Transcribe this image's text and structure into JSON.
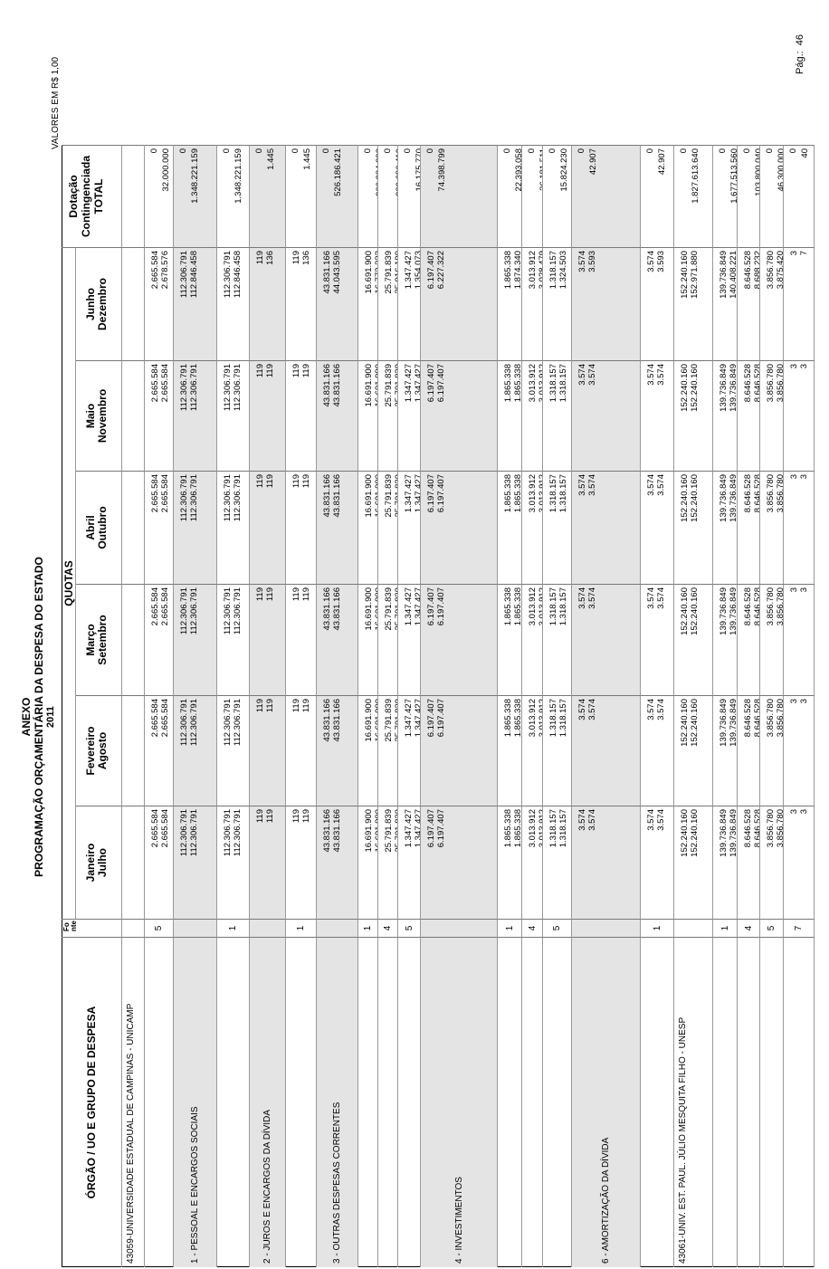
{
  "header": {
    "title": "ANEXO",
    "subtitle": "PROGRAMAÇÃO ORÇAMENTÁRIA DA DESPESA DO ESTADO",
    "year": "2011",
    "page_label": "Pág.:",
    "page": "46",
    "units": "VALORES EM R$ 1,00"
  },
  "table": {
    "columns": {
      "org": "ÓRGÃO / UO  E GRUPO DE DESPESA",
      "fonte": "Fonte",
      "quotas": "QUOTAS",
      "months": [
        [
          "Janeiro",
          "Julho"
        ],
        [
          "Fevereiro",
          "Agosto"
        ],
        [
          "Março",
          "Setembro"
        ],
        [
          "Abril",
          "Outubro"
        ],
        [
          "Maio",
          "Novembro"
        ],
        [
          "Junho",
          "Dezembro"
        ]
      ],
      "dotacao": "Dotação",
      "contingenciada": "Contingenciada",
      "total": "TOTAL"
    },
    "rows": [
      {
        "label": "43059-UNIVERSIDADE ESTADUAL DE CAMPINAS - UNICAMP"
      },
      {
        "fonte": "5",
        "quotas": [
          [
            "2.665.584",
            "2.665.584"
          ],
          [
            "2.665.584",
            "2.665.584"
          ],
          [
            "2.665.584",
            "2.665.584"
          ],
          [
            "2.665.584",
            "2.665.584"
          ],
          [
            "2.665.584",
            "2.665.584"
          ],
          [
            "2.665.584",
            "2.678.576"
          ]
        ],
        "dotacao": "0",
        "total": "32.000.000"
      },
      {
        "label": "1 - PESSOAL E ENCARGOS SOCIAIS",
        "shaded": true,
        "quotas": [
          [
            "112.306.791",
            "112.306.791"
          ],
          [
            "112.306.791",
            "112.306.791"
          ],
          [
            "112.306.791",
            "112.306.791"
          ],
          [
            "112.306.791",
            "112.306.791"
          ],
          [
            "112.306.791",
            "112.306.791"
          ],
          [
            "112.306.791",
            "112.846.458"
          ]
        ],
        "dotacao": "0",
        "total": "1.348.221.159"
      },
      {
        "fonte": "1",
        "quotas": [
          [
            "112.306.791",
            "112.306.791"
          ],
          [
            "112.306.791",
            "112.306.791"
          ],
          [
            "112.306.791",
            "112.306.791"
          ],
          [
            "112.306.791",
            "112.306.791"
          ],
          [
            "112.306.791",
            "112.306.791"
          ],
          [
            "112.306.791",
            "112.846.458"
          ]
        ],
        "dotacao": "0",
        "total": "1.348.221.159"
      },
      {
        "label": "2 - JUROS E ENCARGOS DA DÍVIDA",
        "shaded": true,
        "quotas": [
          [
            "119",
            "119"
          ],
          [
            "119",
            "119"
          ],
          [
            "119",
            "119"
          ],
          [
            "119",
            "119"
          ],
          [
            "119",
            "119"
          ],
          [
            "119",
            "136"
          ]
        ],
        "dotacao": "0",
        "total": "1.445"
      },
      {
        "fonte": "1",
        "quotas": [
          [
            "119",
            "119"
          ],
          [
            "119",
            "119"
          ],
          [
            "119",
            "119"
          ],
          [
            "119",
            "119"
          ],
          [
            "119",
            "119"
          ],
          [
            "119",
            "136"
          ]
        ],
        "dotacao": "0",
        "total": "1.445"
      },
      {
        "label": "3 - OUTRAS DESPESAS CORRENTES",
        "shaded": true,
        "quotas": [
          [
            "43.831.166",
            "43.831.166"
          ],
          [
            "43.831.166",
            "43.831.166"
          ],
          [
            "43.831.166",
            "43.831.166"
          ],
          [
            "43.831.166",
            "43.831.166"
          ],
          [
            "43.831.166",
            "43.831.166"
          ],
          [
            "43.831.166",
            "44.043.595"
          ]
        ],
        "dotacao": "0",
        "total": "526.186.421"
      },
      {
        "fonte": "1",
        "quotas": [
          [
            "16.691.900",
            "16.691.900"
          ],
          [
            "16.691.900",
            "16.691.900"
          ],
          [
            "16.691.900",
            "16.691.900"
          ],
          [
            "16.691.900",
            "16.691.900"
          ],
          [
            "16.691.900",
            "16.691.900"
          ],
          [
            "16.691.900",
            "16.773.332"
          ]
        ],
        "dotacao": "0",
        "total": "200.384.232"
      },
      {
        "fonte": "4",
        "quotas": [
          [
            "25.791.839",
            "25.791.839"
          ],
          [
            "25.791.839",
            "25.791.839"
          ],
          [
            "25.791.839",
            "25.791.839"
          ],
          [
            "25.791.839",
            "25.791.839"
          ],
          [
            "25.791.839",
            "25.791.839"
          ],
          [
            "25.791.839",
            "25.916.190"
          ]
        ],
        "dotacao": "0",
        "total": "309.626.419"
      },
      {
        "fonte": "5",
        "quotas": [
          [
            "1.347.427",
            "1.347.427"
          ],
          [
            "1.347.427",
            "1.347.427"
          ],
          [
            "1.347.427",
            "1.347.427"
          ],
          [
            "1.347.427",
            "1.347.427"
          ],
          [
            "1.347.427",
            "1.347.427"
          ],
          [
            "1.347.427",
            "1.354.073"
          ]
        ],
        "dotacao": "0",
        "total": "16.175.770"
      },
      {
        "label": "4 - INVESTIMENTOS",
        "shaded": true,
        "quotas": [
          [
            "6.197.407",
            "6.197.407"
          ],
          [
            "6.197.407",
            "6.197.407"
          ],
          [
            "6.197.407",
            "6.197.407"
          ],
          [
            "6.197.407",
            "6.197.407"
          ],
          [
            "6.197.407",
            "6.197.407"
          ],
          [
            "6.197.407",
            "6.227.322"
          ]
        ],
        "dotacao": "0",
        "total": "74.398.799"
      },
      {
        "fonte": "1",
        "quotas": [
          [
            "1.865.338",
            "1.865.338"
          ],
          [
            "1.865.338",
            "1.865.338"
          ],
          [
            "1.865.338",
            "1.865.338"
          ],
          [
            "1.865.338",
            "1.865.338"
          ],
          [
            "1.865.338",
            "1.865.338"
          ],
          [
            "1.865.338",
            "1.874.340"
          ]
        ],
        "dotacao": "0",
        "total": "22.393.058"
      },
      {
        "fonte": "4",
        "quotas": [
          [
            "3.013.912",
            "3.013.912"
          ],
          [
            "3.013.912",
            "3.013.912"
          ],
          [
            "3.013.912",
            "3.013.912"
          ],
          [
            "3.013.912",
            "3.013.912"
          ],
          [
            "3.013.912",
            "3.013.912"
          ],
          [
            "3.013.912",
            "3.028.479"
          ]
        ],
        "dotacao": "0",
        "total": "36.181.511"
      },
      {
        "fonte": "5",
        "quotas": [
          [
            "1.318.157",
            "1.318.157"
          ],
          [
            "1.318.157",
            "1.318.157"
          ],
          [
            "1.318.157",
            "1.318.157"
          ],
          [
            "1.318.157",
            "1.318.157"
          ],
          [
            "1.318.157",
            "1.318.157"
          ],
          [
            "1.318.157",
            "1.324.503"
          ]
        ],
        "dotacao": "0",
        "total": "15.824.230"
      },
      {
        "label": "6 - AMORTIZAÇÃO DA DÍVIDA",
        "shaded": true,
        "quotas": [
          [
            "3.574",
            "3.574"
          ],
          [
            "3.574",
            "3.574"
          ],
          [
            "3.574",
            "3.574"
          ],
          [
            "3.574",
            "3.574"
          ],
          [
            "3.574",
            "3.574"
          ],
          [
            "3.574",
            "3.593"
          ]
        ],
        "dotacao": "0",
        "total": "42.907"
      },
      {
        "fonte": "1",
        "quotas": [
          [
            "3.574",
            "3.574"
          ],
          [
            "3.574",
            "3.574"
          ],
          [
            "3.574",
            "3.574"
          ],
          [
            "3.574",
            "3.574"
          ],
          [
            "3.574",
            "3.574"
          ],
          [
            "3.574",
            "3.593"
          ]
        ],
        "dotacao": "0",
        "total": "42.907"
      },
      {
        "label": "43061-UNIV. EST. PAUL. JÚLIO MESQUITA FILHO - UNESP",
        "quotas": [
          [
            "152.240.160",
            "152.240.160"
          ],
          [
            "152.240.160",
            "152.240.160"
          ],
          [
            "152.240.160",
            "152.240.160"
          ],
          [
            "152.240.160",
            "152.240.160"
          ],
          [
            "152.240.160",
            "152.240.160"
          ],
          [
            "152.240.160",
            "152.971.880"
          ]
        ],
        "dotacao": "0",
        "total": "1.827.613.640"
      },
      {
        "fonte": "1",
        "quotas": [
          [
            "139.736.849",
            "139.736.849"
          ],
          [
            "139.736.849",
            "139.736.849"
          ],
          [
            "139.736.849",
            "139.736.849"
          ],
          [
            "139.736.849",
            "139.736.849"
          ],
          [
            "139.736.849",
            "139.736.849"
          ],
          [
            "139.736.849",
            "140.408.221"
          ]
        ],
        "dotacao": "0",
        "total": "1.677.513.560"
      },
      {
        "fonte": "4",
        "quotas": [
          [
            "8.646.528",
            "8.646.528"
          ],
          [
            "8.646.528",
            "8.646.528"
          ],
          [
            "8.646.528",
            "8.646.528"
          ],
          [
            "8.646.528",
            "8.646.528"
          ],
          [
            "8.646.528",
            "8.646.528"
          ],
          [
            "8.646.528",
            "8.688.232"
          ]
        ],
        "dotacao": "0",
        "total": "103.800.040"
      },
      {
        "fonte": "5",
        "quotas": [
          [
            "3.856.780",
            "3.856.780"
          ],
          [
            "3.856.780",
            "3.856.780"
          ],
          [
            "3.856.780",
            "3.856.780"
          ],
          [
            "3.856.780",
            "3.856.780"
          ],
          [
            "3.856.780",
            "3.856.780"
          ],
          [
            "3.856.780",
            "3.875.420"
          ]
        ],
        "dotacao": "0",
        "total": "46.300.000"
      },
      {
        "fonte": "7",
        "quotas": [
          [
            "3",
            "3"
          ],
          [
            "3",
            "3"
          ],
          [
            "3",
            "3"
          ],
          [
            "3",
            "3"
          ],
          [
            "3",
            "3"
          ],
          [
            "3",
            "7"
          ]
        ],
        "dotacao": "0",
        "total": "40"
      }
    ]
  }
}
